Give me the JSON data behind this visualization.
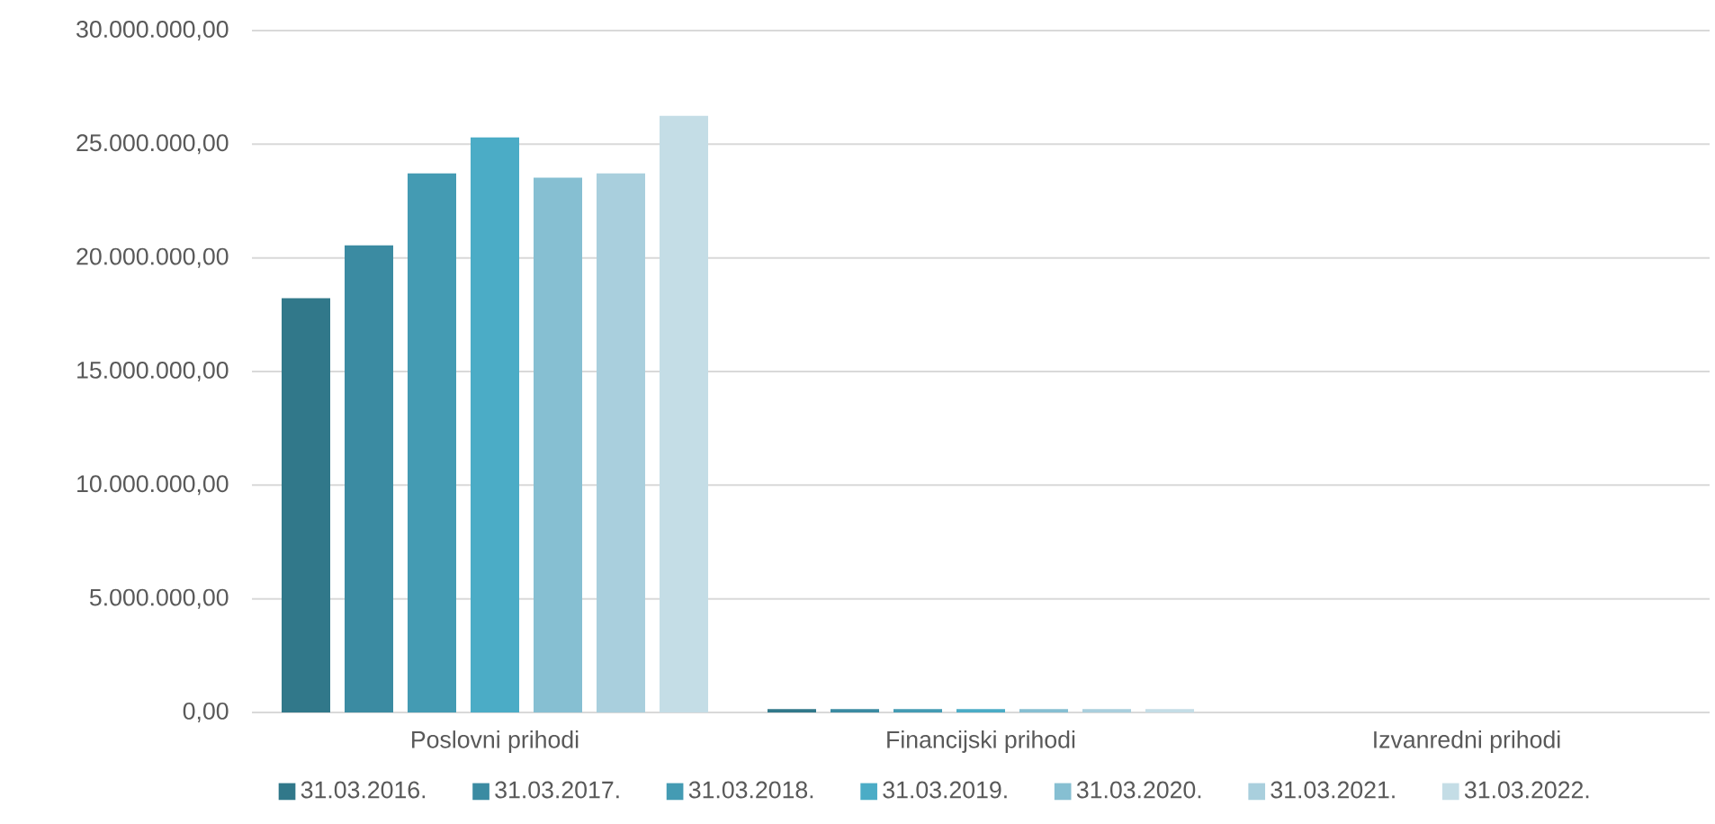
{
  "chart_data": {
    "type": "bar",
    "categories": [
      "Poslovni prihodi",
      "Financijski prihodi",
      "Izvanredni prihodi"
    ],
    "series": [
      {
        "name": "31.03.2016.",
        "color": "#31788a",
        "values": [
          18230000,
          150000,
          null
        ]
      },
      {
        "name": "31.03.2017.",
        "color": "#3b8ba2",
        "values": [
          20550000,
          150000,
          null
        ]
      },
      {
        "name": "31.03.2018.",
        "color": "#449bb3",
        "values": [
          23720000,
          150000,
          null
        ]
      },
      {
        "name": "31.03.2019.",
        "color": "#4bacc6",
        "values": [
          25300000,
          150000,
          null
        ]
      },
      {
        "name": "31.03.2020.",
        "color": "#86bfd2",
        "values": [
          23530000,
          150000,
          null
        ]
      },
      {
        "name": "31.03.2021.",
        "color": "#a9cfdd",
        "values": [
          23720000,
          150000,
          null
        ]
      },
      {
        "name": "31.03.2022.",
        "color": "#c4dde6",
        "values": [
          26250000,
          150000,
          null
        ]
      }
    ],
    "ylim": [
      0,
      30000000
    ],
    "yticks": [
      {
        "value": 0,
        "label": "0,00"
      },
      {
        "value": 5000000,
        "label": "5.000.000,00"
      },
      {
        "value": 10000000,
        "label": "10.000.000,00"
      },
      {
        "value": 15000000,
        "label": "15.000.000,00"
      },
      {
        "value": 20000000,
        "label": "20.000.000,00"
      },
      {
        "value": 25000000,
        "label": "25.000.000,00"
      },
      {
        "value": 30000000,
        "label": "30.000.000,00"
      }
    ],
    "grid": "y",
    "legend": "bottom"
  }
}
